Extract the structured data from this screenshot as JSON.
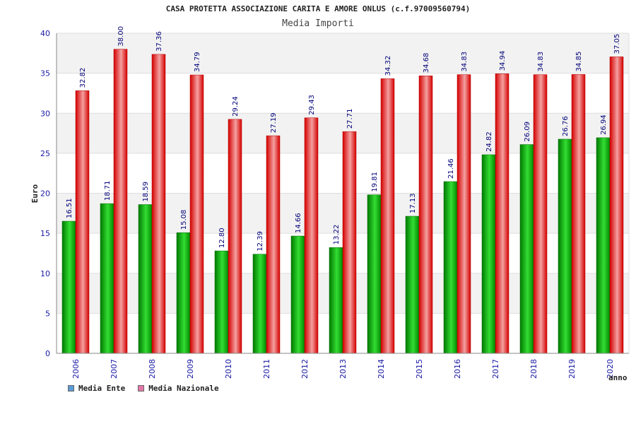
{
  "chart_data": {
    "type": "bar",
    "title": "CASA PROTETTA ASSOCIAZIONE CARITA E AMORE ONLUS (c.f.97009560794)",
    "subtitle": "Media Importi",
    "xlabel": "anno",
    "ylabel": "Euro",
    "ylim": [
      0,
      40
    ],
    "yticks": [
      0,
      5,
      10,
      15,
      20,
      25,
      30,
      35,
      40
    ],
    "grid": true,
    "categories": [
      "2006",
      "2007",
      "2008",
      "2009",
      "2010",
      "2011",
      "2012",
      "2013",
      "2014",
      "2015",
      "2016",
      "2017",
      "2018",
      "2019",
      "2020"
    ],
    "series": [
      {
        "name": "Media Ente",
        "values": [
          16.51,
          18.71,
          18.59,
          15.08,
          12.8,
          12.39,
          14.66,
          13.22,
          19.81,
          17.13,
          21.46,
          24.82,
          26.09,
          26.76,
          26.94
        ],
        "labels": [
          "16.51",
          "18.71",
          "18.59",
          "15.08",
          "12.80",
          "12.39",
          "14.66",
          "13.22",
          "19.81",
          "17.13",
          "21.46",
          "24.82",
          "26.09",
          "26.76",
          "26.94"
        ]
      },
      {
        "name": "Media Nazionale",
        "values": [
          32.82,
          38.0,
          37.36,
          34.79,
          29.24,
          27.19,
          29.43,
          27.71,
          34.32,
          34.68,
          34.83,
          34.94,
          34.83,
          34.85,
          37.05
        ],
        "labels": [
          "32.82",
          "38.00",
          "37.36",
          "34.79",
          "29.24",
          "27.19",
          "29.43",
          "27.71",
          "34.32",
          "34.68",
          "34.83",
          "34.94",
          "34.83",
          "34.85",
          "37.05"
        ]
      }
    ],
    "legend_position": "bottom-left"
  },
  "colors": {
    "ente_dark": "#007a00",
    "ente_light": "#33dd33",
    "naz_dark": "#d40000",
    "naz_light": "#f4a0a0",
    "legend_ente": "#5b9bd5",
    "legend_naz": "#e377a8"
  }
}
